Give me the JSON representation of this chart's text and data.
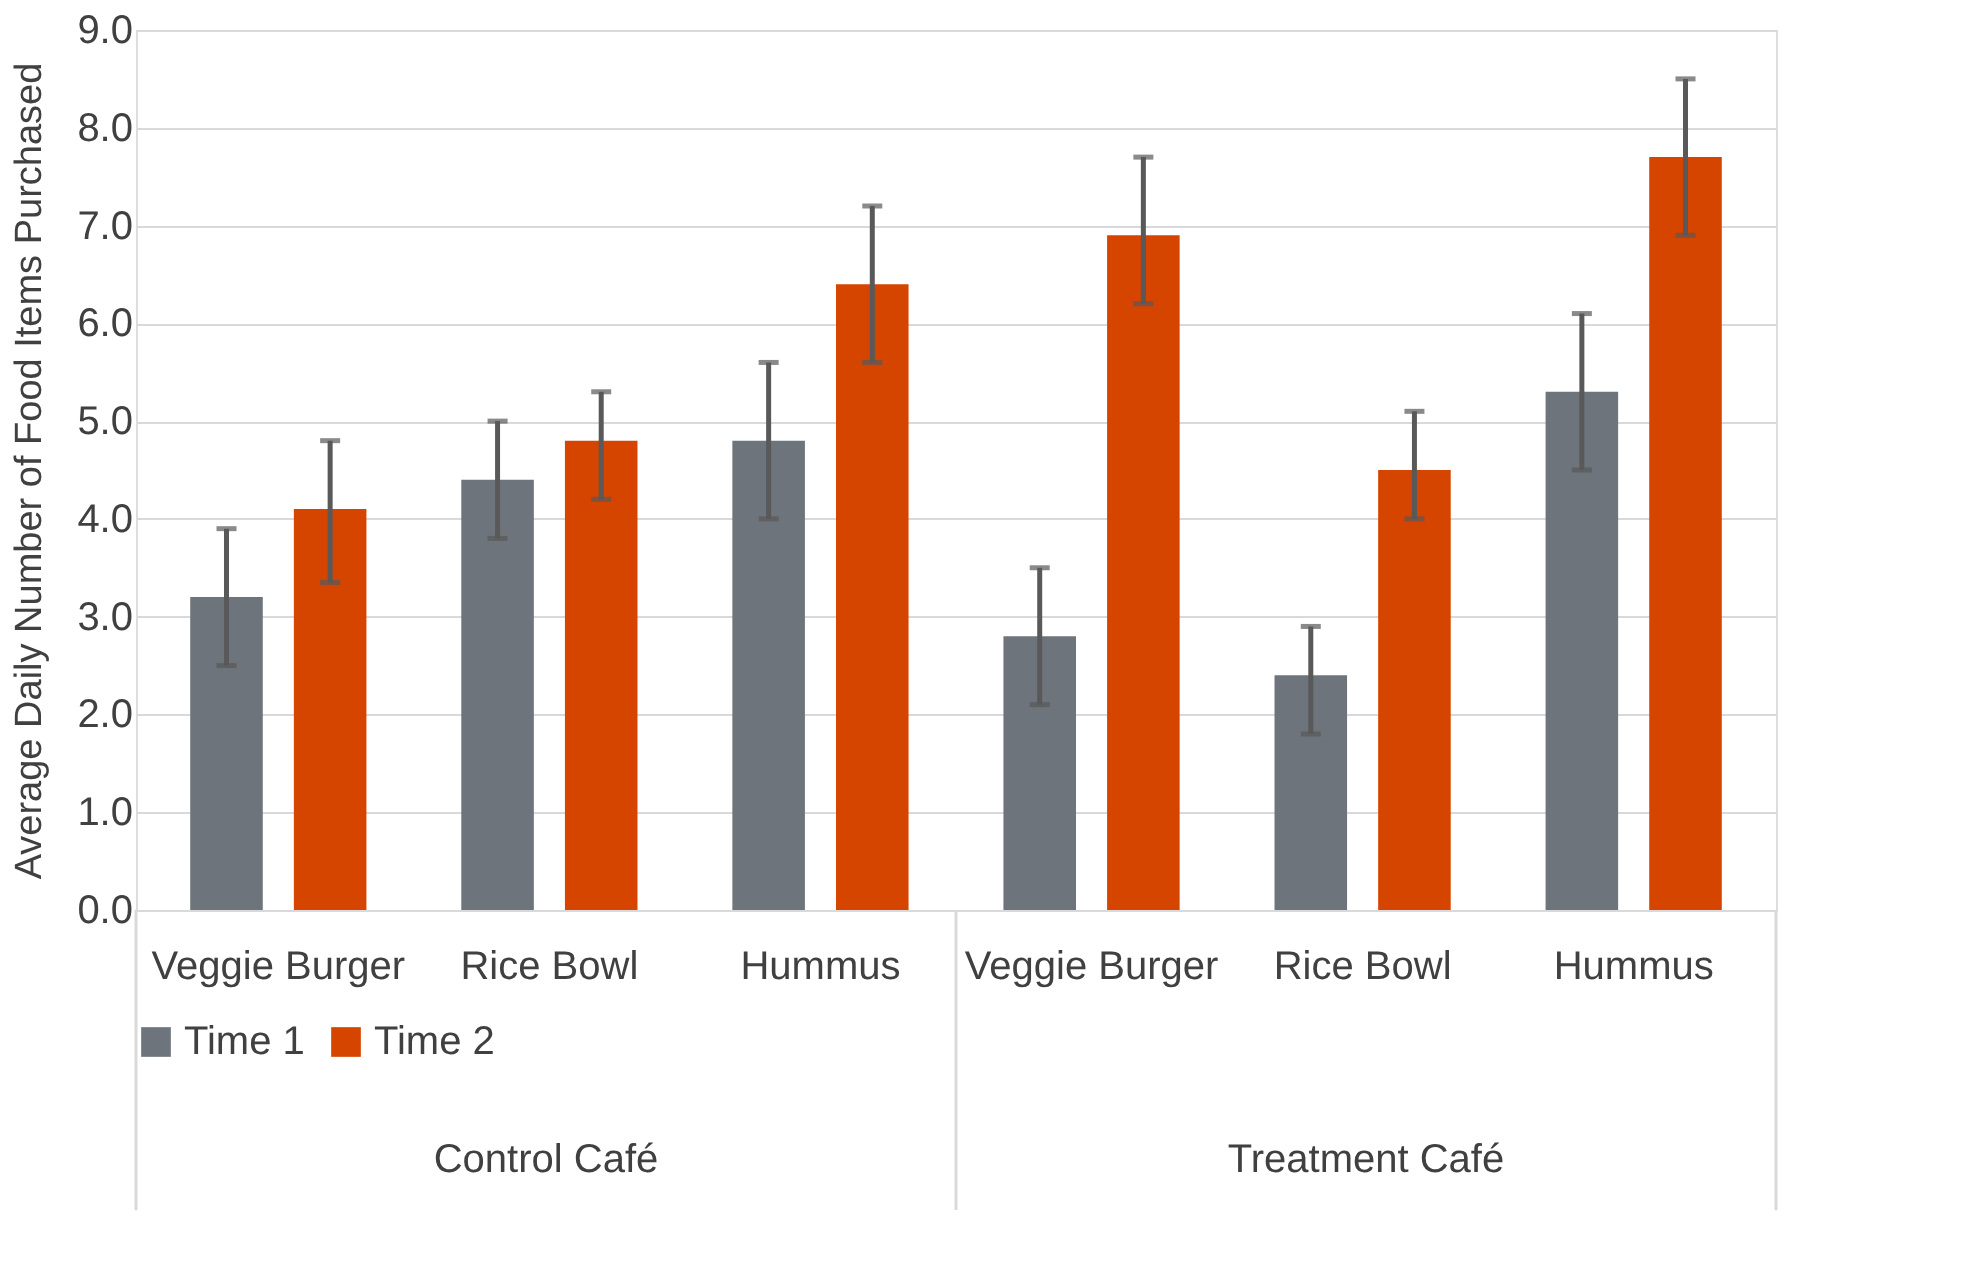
{
  "chart_data": {
    "type": "bar",
    "ylabel": "Average Daily Number of Food Items Purchased",
    "categories": [
      "Veggie Burger",
      "Rice Bowl",
      "Hummus",
      "Veggie Burger",
      "Rice Bowl",
      "Hummus"
    ],
    "annotations": [
      "Control Café",
      "Treatment Café"
    ],
    "series": [
      {
        "name": "Time 1",
        "color": "#6d747b",
        "values": [
          3.2,
          4.4,
          4.8,
          2.8,
          2.4,
          5.3
        ],
        "errors": [
          [
            2.5,
            3.9
          ],
          [
            3.8,
            5.0
          ],
          [
            4.0,
            5.6
          ],
          [
            2.1,
            3.5
          ],
          [
            1.8,
            2.9
          ],
          [
            4.5,
            6.1
          ]
        ]
      },
      {
        "name": "Time 2",
        "color": "#d54500",
        "values": [
          4.1,
          4.8,
          6.4,
          6.9,
          4.5,
          7.7
        ],
        "errors": [
          [
            3.35,
            4.8
          ],
          [
            4.2,
            5.3
          ],
          [
            5.6,
            7.2
          ],
          [
            6.2,
            7.7
          ],
          [
            4.0,
            5.1
          ],
          [
            6.9,
            8.5
          ]
        ]
      }
    ],
    "ylim": [
      0,
      9
    ],
    "yticks": [
      {
        "value": 0,
        "label": "0.0"
      },
      {
        "value": 1,
        "label": "1.0"
      },
      {
        "value": 2,
        "label": "2.0"
      },
      {
        "value": 3,
        "label": "3.0"
      },
      {
        "value": 4,
        "label": "4.0"
      },
      {
        "value": 5,
        "label": "5.0"
      },
      {
        "value": 6,
        "label": "6.0"
      },
      {
        "value": 7,
        "label": "7.0"
      },
      {
        "value": 8,
        "label": "8.0"
      },
      {
        "value": 9,
        "label": "9.0"
      }
    ],
    "grid": "y",
    "legend": "bottom"
  }
}
